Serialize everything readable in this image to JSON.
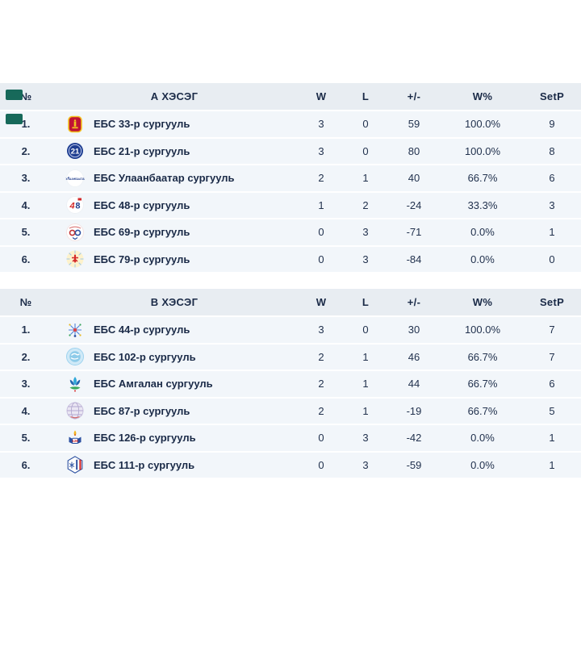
{
  "colors": {
    "marker": "#17695a",
    "header_bg": "#e8edf2",
    "row_bg": "#f2f6fa",
    "text": "#1a2a47"
  },
  "columns": {
    "rank": "№",
    "wins": "W",
    "losses": "L",
    "diff": "+/-",
    "win_pct": "W%",
    "set_points": "SetP"
  },
  "groups": [
    {
      "title": "А ХЭСЭГ",
      "teams": [
        {
          "rank": "1.",
          "name": "ЕБС 33-р сургууль",
          "logo": "school-33",
          "w": "3",
          "l": "0",
          "diff": "59",
          "pct": "100.0%",
          "setp": "9"
        },
        {
          "rank": "2.",
          "name": "ЕБС 21-р сургууль",
          "logo": "school-21",
          "w": "3",
          "l": "0",
          "diff": "80",
          "pct": "100.0%",
          "setp": "8"
        },
        {
          "rank": "3.",
          "name": "ЕБС Улаанбаатар сургууль",
          "logo": "school-ub",
          "w": "2",
          "l": "1",
          "diff": "40",
          "pct": "66.7%",
          "setp": "6"
        },
        {
          "rank": "4.",
          "name": "ЕБС 48-р сургууль",
          "logo": "school-48",
          "w": "1",
          "l": "2",
          "diff": "-24",
          "pct": "33.3%",
          "setp": "3"
        },
        {
          "rank": "5.",
          "name": "ЕБС 69-р сургууль",
          "logo": "school-69",
          "w": "0",
          "l": "3",
          "diff": "-71",
          "pct": "0.0%",
          "setp": "1"
        },
        {
          "rank": "6.",
          "name": "ЕБС 79-р сургууль",
          "logo": "school-79",
          "w": "0",
          "l": "3",
          "diff": "-84",
          "pct": "0.0%",
          "setp": "0"
        }
      ]
    },
    {
      "title": "В ХЭСЭГ",
      "teams": [
        {
          "rank": "1.",
          "name": "ЕБС 44-р сургууль",
          "logo": "school-44",
          "w": "3",
          "l": "0",
          "diff": "30",
          "pct": "100.0%",
          "setp": "7"
        },
        {
          "rank": "2.",
          "name": "ЕБС 102-р сургууль",
          "logo": "school-102",
          "w": "2",
          "l": "1",
          "diff": "46",
          "pct": "66.7%",
          "setp": "7"
        },
        {
          "rank": "3.",
          "name": "ЕБС Амгалан сургууль",
          "logo": "school-amgalan",
          "w": "2",
          "l": "1",
          "diff": "44",
          "pct": "66.7%",
          "setp": "6"
        },
        {
          "rank": "4.",
          "name": "ЕБС 87-р сургууль",
          "logo": "school-87",
          "w": "2",
          "l": "1",
          "diff": "-19",
          "pct": "66.7%",
          "setp": "5"
        },
        {
          "rank": "5.",
          "name": "ЕБС 126-р сургууль",
          "logo": "school-126",
          "w": "0",
          "l": "3",
          "diff": "-42",
          "pct": "0.0%",
          "setp": "1"
        },
        {
          "rank": "6.",
          "name": "ЕБС 111-р сургууль",
          "logo": "school-111",
          "w": "0",
          "l": "3",
          "diff": "-59",
          "pct": "0.0%",
          "setp": "1"
        }
      ]
    }
  ]
}
